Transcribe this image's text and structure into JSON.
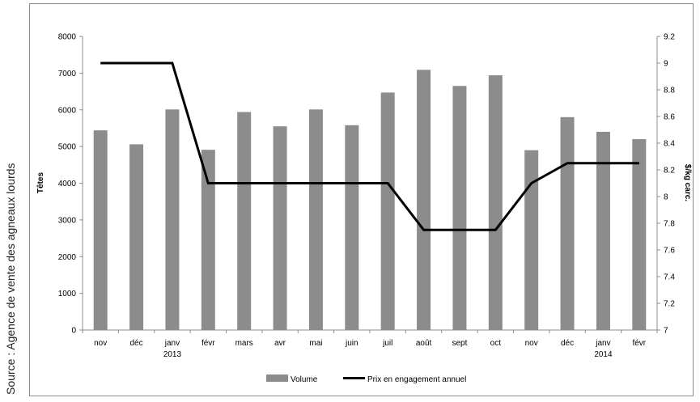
{
  "source_note": "Source : Agence de vente des agneaux lourds",
  "chart_data": {
    "type": "bar",
    "categories": [
      "nov",
      "déc",
      "janv",
      "févr",
      "mars",
      "avr",
      "mai",
      "juin",
      "juil",
      "août",
      "sept",
      "oct",
      "nov",
      "déc",
      "janv",
      "févr"
    ],
    "year_labels": [
      {
        "index": 2,
        "text": "2013"
      },
      {
        "index": 14,
        "text": "2014"
      }
    ],
    "series": [
      {
        "name": "Volume",
        "type": "bar",
        "axis": "left",
        "values": [
          5440,
          5060,
          6010,
          4910,
          5940,
          5550,
          6010,
          5580,
          6470,
          7090,
          6650,
          6940,
          4900,
          5800,
          5400,
          5200
        ],
        "color": "#8c8c8c"
      },
      {
        "name": "Prix en engagement annuel",
        "type": "line",
        "axis": "right",
        "values": [
          9.0,
          9.0,
          9.0,
          8.1,
          8.1,
          8.1,
          8.1,
          8.1,
          8.1,
          7.75,
          7.75,
          7.75,
          8.1,
          8.25,
          8.25,
          8.25
        ],
        "color": "#000000"
      }
    ],
    "ylabel": "Têtes",
    "y2label": "$/kg carc.",
    "ylim": [
      0,
      8000
    ],
    "yticks": [
      "0",
      "1000",
      "2000",
      "3000",
      "4000",
      "5000",
      "6000",
      "7000",
      "8000"
    ],
    "y2lim": [
      7,
      9.2
    ],
    "y2ticks": [
      "7",
      "7.2",
      "7.4",
      "7.6",
      "7.8",
      "8",
      "8.2",
      "8.4",
      "8.6",
      "8.8",
      "9",
      "9.2"
    ],
    "grid": false,
    "legend_position": "bottom"
  }
}
